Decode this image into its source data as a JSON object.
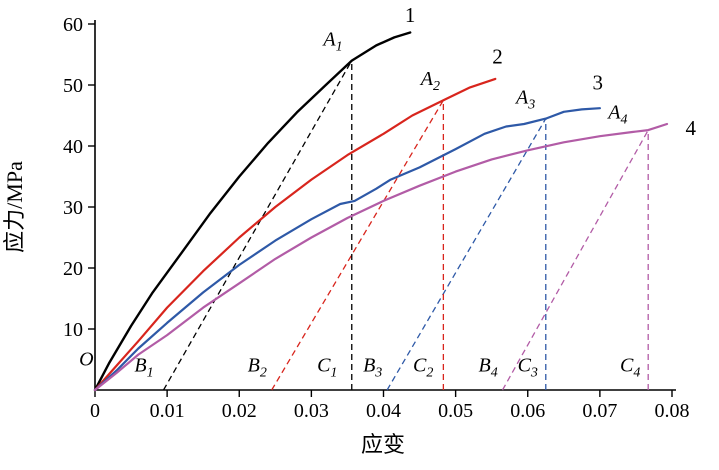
{
  "chart_data": {
    "type": "line",
    "title": "",
    "xlabel": "应变",
    "ylabel": "应力/MPa",
    "xlim": [
      0,
      0.08
    ],
    "ylim": [
      0,
      60
    ],
    "grid": false,
    "legend": "none (curves labeled 1-4 at line ends)",
    "x_ticks": [
      {
        "v": 0.0,
        "label": "0"
      },
      {
        "v": 0.01,
        "label": "0.01"
      },
      {
        "v": 0.02,
        "label": "0.02"
      },
      {
        "v": 0.03,
        "label": "0.03"
      },
      {
        "v": 0.04,
        "label": "0.04"
      },
      {
        "v": 0.05,
        "label": "0.05"
      },
      {
        "v": 0.06,
        "label": "0.06"
      },
      {
        "v": 0.07,
        "label": "0.07"
      },
      {
        "v": 0.08,
        "label": "0.08"
      }
    ],
    "y_ticks": [
      {
        "v": 10,
        "label": "10"
      },
      {
        "v": 20,
        "label": "20"
      },
      {
        "v": 30,
        "label": "30"
      },
      {
        "v": 40,
        "label": "40"
      },
      {
        "v": 50,
        "label": "50"
      },
      {
        "v": 60,
        "label": "60"
      }
    ],
    "series": [
      {
        "name": "1",
        "color": "#000000",
        "width": 2.4,
        "points": [
          [
            0,
            0
          ],
          [
            0.002,
            4.5
          ],
          [
            0.005,
            10.5
          ],
          [
            0.008,
            16
          ],
          [
            0.012,
            22.5
          ],
          [
            0.016,
            29
          ],
          [
            0.02,
            35
          ],
          [
            0.024,
            40.5
          ],
          [
            0.028,
            45.5
          ],
          [
            0.032,
            50
          ],
          [
            0.0356,
            54
          ],
          [
            0.039,
            56.5
          ],
          [
            0.0415,
            57.8
          ],
          [
            0.0437,
            58.6
          ]
        ]
      },
      {
        "name": "2",
        "color": "#d8251d",
        "width": 2.2,
        "points": [
          [
            0,
            0
          ],
          [
            0.003,
            4
          ],
          [
            0.006,
            8
          ],
          [
            0.01,
            13.5
          ],
          [
            0.015,
            19.5
          ],
          [
            0.02,
            25
          ],
          [
            0.025,
            30
          ],
          [
            0.03,
            34.5
          ],
          [
            0.035,
            38.5
          ],
          [
            0.04,
            42
          ],
          [
            0.044,
            45
          ],
          [
            0.0483,
            47.5
          ],
          [
            0.052,
            49.6
          ],
          [
            0.0555,
            51
          ]
        ]
      },
      {
        "name": "3",
        "color": "#2e59a7",
        "width": 2.2,
        "points": [
          [
            0,
            0
          ],
          [
            0.003,
            3.2
          ],
          [
            0.006,
            6.8
          ],
          [
            0.01,
            11
          ],
          [
            0.015,
            16
          ],
          [
            0.02,
            20.5
          ],
          [
            0.025,
            24.5
          ],
          [
            0.03,
            28
          ],
          [
            0.034,
            30.5
          ],
          [
            0.036,
            31
          ],
          [
            0.039,
            33
          ],
          [
            0.041,
            34.5
          ],
          [
            0.045,
            36.5
          ],
          [
            0.05,
            39.5
          ],
          [
            0.054,
            42
          ],
          [
            0.057,
            43.2
          ],
          [
            0.0595,
            43.6
          ],
          [
            0.0625,
            44.5
          ],
          [
            0.065,
            45.6
          ],
          [
            0.0675,
            46
          ],
          [
            0.07,
            46.2
          ]
        ]
      },
      {
        "name": "4",
        "color": "#b25ca6",
        "width": 2.2,
        "points": [
          [
            0,
            0
          ],
          [
            0.003,
            2.8
          ],
          [
            0.006,
            5.8
          ],
          [
            0.01,
            9
          ],
          [
            0.015,
            13.5
          ],
          [
            0.02,
            17.5
          ],
          [
            0.025,
            21.5
          ],
          [
            0.03,
            25
          ],
          [
            0.035,
            28.2
          ],
          [
            0.04,
            31
          ],
          [
            0.045,
            33.5
          ],
          [
            0.05,
            35.8
          ],
          [
            0.055,
            37.8
          ],
          [
            0.06,
            39.3
          ],
          [
            0.065,
            40.6
          ],
          [
            0.07,
            41.6
          ],
          [
            0.0745,
            42.3
          ],
          [
            0.0767,
            42.6
          ],
          [
            0.0793,
            43.6
          ]
        ]
      }
    ],
    "unload_lines": [
      {
        "name": "B1-A1",
        "color": "#000000",
        "from": [
          0.0095,
          0
        ],
        "to": [
          0.0356,
          54
        ]
      },
      {
        "name": "B2-A2",
        "color": "#d8251d",
        "from": [
          0.0245,
          0
        ],
        "to": [
          0.0483,
          47.5
        ]
      },
      {
        "name": "B3-A3",
        "color": "#2e59a7",
        "from": [
          0.0405,
          0
        ],
        "to": [
          0.0625,
          44.5
        ]
      },
      {
        "name": "B4-A4",
        "color": "#b25ca6",
        "from": [
          0.0565,
          0
        ],
        "to": [
          0.0767,
          42.6
        ]
      }
    ],
    "vertical_lines": [
      {
        "name": "A1-C1",
        "color": "#000000",
        "x": 0.0356,
        "y_top": 54
      },
      {
        "name": "A2-C2",
        "color": "#d8251d",
        "x": 0.0483,
        "y_top": 47.5
      },
      {
        "name": "A3-C3",
        "color": "#2e59a7",
        "x": 0.0625,
        "y_top": 44.5
      },
      {
        "name": "A4-C4",
        "color": "#b25ca6",
        "x": 0.0767,
        "y_top": 42.6
      }
    ],
    "point_labels": [
      {
        "text": "O",
        "sub": "",
        "x": -0.0012,
        "y": 4.0
      },
      {
        "text": "B",
        "sub": "1",
        "x": 0.0068,
        "y": 3.0
      },
      {
        "text": "B",
        "sub": "2",
        "x": 0.0225,
        "y": 3.0
      },
      {
        "text": "C",
        "sub": "1",
        "x": 0.0322,
        "y": 3.0
      },
      {
        "text": "B",
        "sub": "3",
        "x": 0.0385,
        "y": 3.0
      },
      {
        "text": "C",
        "sub": "2",
        "x": 0.0455,
        "y": 3.0
      },
      {
        "text": "B",
        "sub": "4",
        "x": 0.0545,
        "y": 3.0
      },
      {
        "text": "C",
        "sub": "3",
        "x": 0.06,
        "y": 3.0
      },
      {
        "text": "C",
        "sub": "4",
        "x": 0.0742,
        "y": 3.0
      },
      {
        "text": "A",
        "sub": "1",
        "x": 0.033,
        "y": 56.5
      },
      {
        "text": "A",
        "sub": "2",
        "x": 0.0465,
        "y": 50.0
      },
      {
        "text": "A",
        "sub": "3",
        "x": 0.0597,
        "y": 47.0
      },
      {
        "text": "A",
        "sub": "4",
        "x": 0.0725,
        "y": 44.5
      }
    ],
    "curve_labels": [
      {
        "text": "1",
        "x": 0.0437,
        "y": 60.3
      },
      {
        "text": "2",
        "x": 0.0558,
        "y": 53.5
      },
      {
        "text": "3",
        "x": 0.0697,
        "y": 49.3
      },
      {
        "text": "4",
        "x": 0.0826,
        "y": 41.8
      }
    ]
  }
}
